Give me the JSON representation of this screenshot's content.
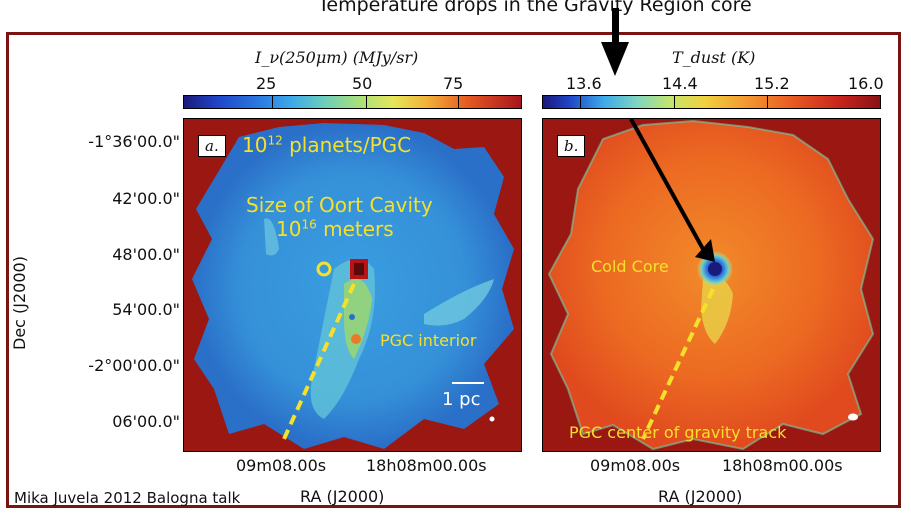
{
  "top_text": "Temperature drops in the Gravity Region core",
  "colorbar_a": {
    "title": "I_ν(250μm) (MJy/sr)",
    "ticks": [
      "25",
      "50",
      "75"
    ]
  },
  "colorbar_b": {
    "title": "T_dust (K)",
    "ticks": [
      "13.6",
      "14.4",
      "15.2",
      "16.0"
    ]
  },
  "panel_a": {
    "label": "a.",
    "planets_base": "10",
    "planets_exp": "12",
    "planets_rest": " planets/PGC",
    "oort_line1": "Size of Oort Cavity",
    "oort_base": "10",
    "oort_exp": "16",
    "oort_rest": " meters",
    "interior": "PGC interior",
    "scale": "1 pc"
  },
  "panel_b": {
    "label": "b.",
    "cold_core": "Cold Core",
    "track": "PGC center of gravity track"
  },
  "y_ticks": [
    "-1°36'00.0\"",
    "42'00.0\"",
    "48'00.0\"",
    "54'00.0\"",
    "-2°00'00.0\"",
    "06'00.0\""
  ],
  "y_label": "Dec (J2000)",
  "x_ticks_a": [
    "09m08.00s",
    "18h08m00.00s"
  ],
  "x_ticks_b": [
    "09m08.00s",
    "18h08m00.00s"
  ],
  "x_label": "RA (J2000)",
  "credit": "Mika Juvela 2012 Balogna talk",
  "colors": {
    "frame": "#7a1412",
    "annotation": "#f5e02a",
    "background_map": "#9a1712"
  }
}
